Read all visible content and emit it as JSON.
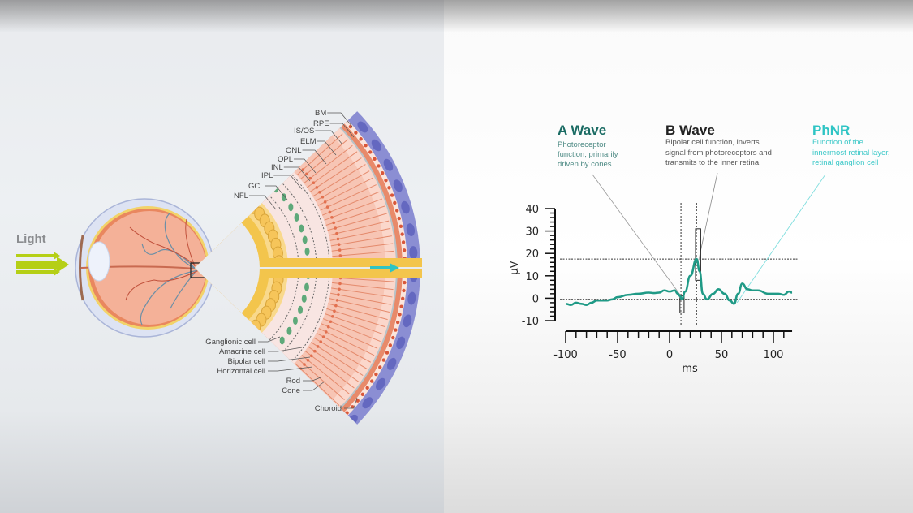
{
  "eye": {
    "light_label": "Light",
    "light_arrow_color": "#b5cf16",
    "layer_labels": [
      "BM",
      "RPE",
      "IS/OS",
      "ELM",
      "ONL",
      "OPL",
      "INL",
      "IPL",
      "GCL",
      "NFL"
    ],
    "cell_labels": [
      "Ganglionic cell",
      "Amacrine cell",
      "Bipolar cell",
      "Horizontal cell",
      "Rod",
      "Cone",
      "Choroid"
    ],
    "signal_arrow_color": "#2ec4c4"
  },
  "annotations": {
    "a_wave": {
      "title": "A Wave",
      "desc": [
        "Photoreceptor",
        "function, primarily",
        "driven by cones"
      ],
      "color": "#1a6b63"
    },
    "b_wave": {
      "title": "B Wave",
      "desc": [
        "Bipolar cell function, inverts",
        "signal from photoreceptors and",
        "transmits to the inner retina"
      ],
      "color": "#222222"
    },
    "phnr": {
      "title": "PhNR",
      "desc": [
        "Function of the",
        "innermost retinal layer,",
        "retinal ganglion cell"
      ],
      "color": "#2ec4c4"
    }
  },
  "chart_data": {
    "type": "line",
    "xlabel": "ms",
    "ylabel": "µV",
    "xlim": [
      -100,
      120
    ],
    "ylim": [
      -10,
      40
    ],
    "xticks": [
      -100,
      -50,
      0,
      50,
      100
    ],
    "yticks": [
      40,
      30,
      20,
      10,
      0,
      -10
    ],
    "line_color": "#1f9a86",
    "series": [
      {
        "x": [
          -100,
          -95,
          -90,
          -85,
          -80,
          -75,
          -70,
          -60,
          -55,
          -50,
          -40,
          -30,
          -20,
          -15,
          -10,
          -5,
          0,
          5,
          8,
          10,
          12,
          15,
          20,
          26,
          29,
          32,
          36,
          42,
          47,
          53,
          58,
          62,
          66,
          70,
          75,
          80,
          85,
          95,
          105,
          110,
          115,
          118
        ],
        "y": [
          -2.5,
          -3,
          -2,
          -2.5,
          -3,
          -2,
          -1,
          -1,
          -0.5,
          0.5,
          1.5,
          2,
          2.5,
          2.3,
          2.5,
          3.5,
          3,
          3.5,
          2,
          1,
          -0.5,
          3,
          10,
          17.5,
          12,
          2,
          -0.5,
          2,
          4,
          2,
          -1,
          -2.5,
          2,
          6.5,
          4,
          3.5,
          3.5,
          2,
          2,
          1.5,
          3,
          2.5
        ]
      }
    ],
    "reference_lines": {
      "vertical_ms": [
        11,
        26
      ],
      "horizontal_uv": [
        17.5,
        -0.5
      ]
    },
    "markers": [
      {
        "label": "A Wave",
        "x_range": [
          10,
          14
        ],
        "y_range": [
          -6.5,
          1
        ]
      },
      {
        "label": "B Wave",
        "x_range": [
          25,
          30
        ],
        "y_range": [
          8,
          31
        ]
      }
    ]
  }
}
